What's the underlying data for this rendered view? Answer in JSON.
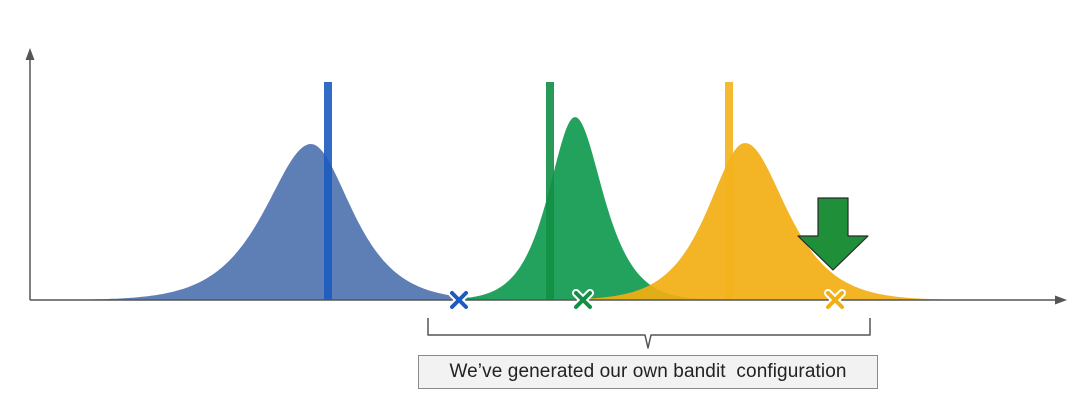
{
  "caption": "We’ve generated our own bandit  configuration",
  "colors": {
    "blue": "#4f74b0",
    "blue_line": "#1c5bbf",
    "green": "#0f9a4f",
    "green_line": "#118f45",
    "yellow": "#f2af12",
    "yellow_line": "#f3b21c",
    "arrow": "#1f8f3a",
    "axis": "#555555",
    "bracket": "#555555"
  },
  "distributions": [
    {
      "name": "blue",
      "color_key": "blue",
      "line_key": "blue_line",
      "marker_icon": "x-mark-icon"
    },
    {
      "name": "green",
      "color_key": "green",
      "line_key": "green_line",
      "marker_icon": "x-mark-icon"
    },
    {
      "name": "yellow",
      "color_key": "yellow",
      "line_key": "yellow_line",
      "marker_icon": "x-mark-icon"
    }
  ],
  "highlight_icon": "down-arrow-icon"
}
